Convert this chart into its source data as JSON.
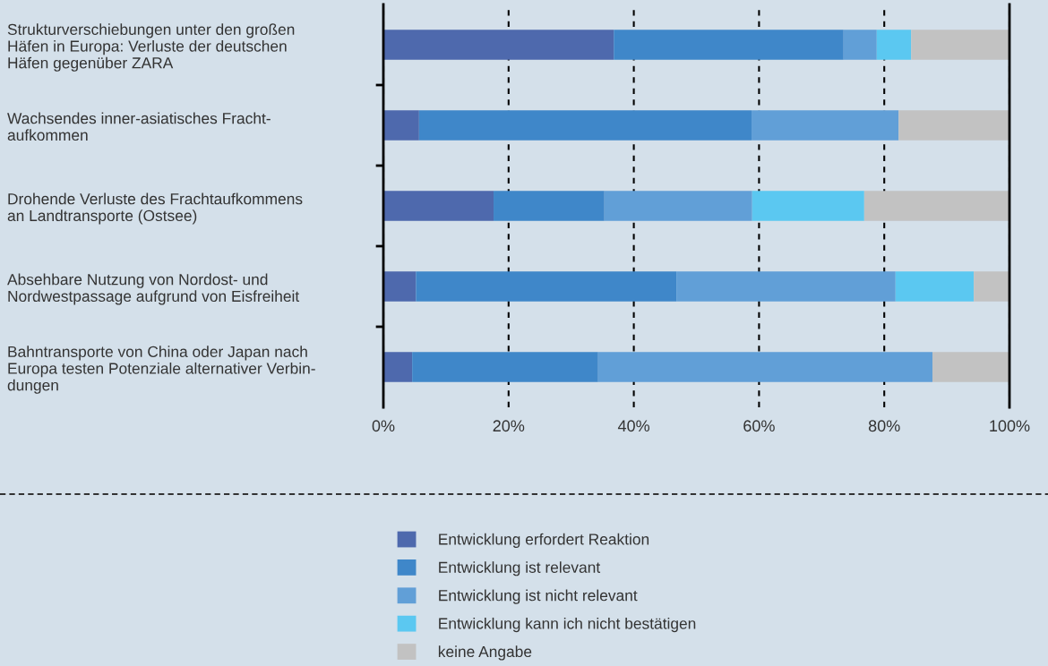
{
  "chart_data": {
    "type": "bar",
    "orientation": "horizontal",
    "stacked": true,
    "categories": [
      "Strukturverschiebungen unter den großen\nHäfen in Europa: Verluste der deutschen\nHäfen gegenüber ZARA",
      "Wachsendes inner-asiatisches Fracht-\naufkommen",
      "Drohende Verluste des Frachtaufkommens\nan Landtransporte (Ostsee)",
      "Absehbare Nutzung von Nordost- und\nNordwestpassage aufgrund von Eisfreiheit",
      "Bahntransporte von China oder Japan nach\nEuropa testen Potenziale alternativer Verbin-\ndungen"
    ],
    "series": [
      {
        "name": "Entwicklung erfordert Reaktion",
        "color": "#4e69ad",
        "values": [
          36.8,
          5.7,
          17.6,
          5.2,
          4.6
        ]
      },
      {
        "name": "Entwicklung ist relevant",
        "color": "#3f87c9",
        "values": [
          36.7,
          53.1,
          17.7,
          41.6,
          29.7
        ]
      },
      {
        "name": "Entwicklung ist nicht relevant",
        "color": "#619fd7",
        "values": [
          5.3,
          23.5,
          23.6,
          35.0,
          53.4
        ]
      },
      {
        "name": "Entwicklung kann ich nicht bestätigen",
        "color": "#5bc8f1",
        "values": [
          5.5,
          0,
          17.9,
          12.5,
          0
        ]
      },
      {
        "name": "keine Angabe",
        "color": "#c2c2c2",
        "values": [
          15.7,
          17.7,
          23.2,
          5.7,
          12.3
        ]
      }
    ],
    "xlim": [
      0,
      100
    ],
    "xticks": [
      {
        "value": 0,
        "label": "0%"
      },
      {
        "value": 20,
        "label": "20%"
      },
      {
        "value": 40,
        "label": "40%"
      },
      {
        "value": 60,
        "label": "60%"
      },
      {
        "value": 80,
        "label": "80%"
      },
      {
        "value": 100,
        "label": "100%"
      }
    ],
    "grid": "x",
    "line_style": "dashed",
    "legend": "bottom"
  }
}
